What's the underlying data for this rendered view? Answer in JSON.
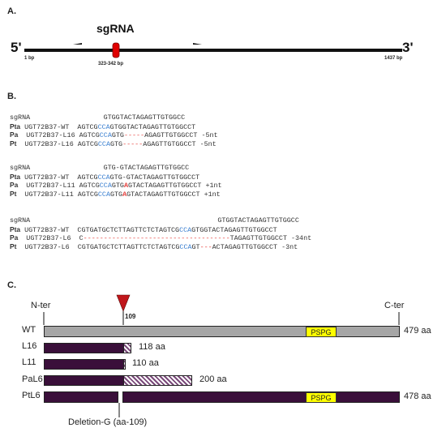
{
  "panel_a": {
    "label": "A.",
    "title": "sgRNA",
    "five_prime": "5'",
    "three_prime": "3'",
    "start_pos": "1 bp",
    "end_pos": "1437 bp",
    "target_range": "323-342 bp"
  },
  "panel_b": {
    "label": "B.",
    "blocks": [
      {
        "lines": [
          {
            "sp": "",
            "sp_style": "",
            "name": "sgRNA",
            "segments": [
              [
                "                  GTGGTACTAGAGTTGTGGCC",
                ""
              ]
            ],
            "note": ""
          },
          {
            "sp": "Pta",
            "sp_style": "b",
            "name": " UGT72B37-WT  ",
            "segments": [
              [
                "AGTCG",
                ""
              ],
              [
                "CCA",
                "blue"
              ],
              [
                "GTGGTACTAGAGTTGTGGCCT",
                ""
              ]
            ],
            "note": ""
          },
          {
            "sp": "Pa",
            "sp_style": "b",
            "name": "  UGT72B37-L16 ",
            "segments": [
              [
                "AGTCG",
                ""
              ],
              [
                "CCA",
                "blue"
              ],
              [
                "GTG",
                ""
              ],
              [
                "-----",
                "red"
              ],
              [
                "AGAGTTGTGGCCT",
                ""
              ]
            ],
            "note": " -5nt"
          },
          {
            "sp": "Pt",
            "sp_style": "b",
            "name": "  UGT72B37-L16 ",
            "segments": [
              [
                "AGTCG",
                ""
              ],
              [
                "CCA",
                "blue"
              ],
              [
                "GTG",
                ""
              ],
              [
                "-----",
                "red"
              ],
              [
                "AGAGTTGTGGCCT",
                ""
              ]
            ],
            "note": " -5nt"
          }
        ]
      },
      {
        "lines": [
          {
            "sp": "",
            "sp_style": "",
            "name": "sgRNA",
            "segments": [
              [
                "                  GTG-GTACTAGAGTTGTGGCC",
                ""
              ]
            ],
            "note": ""
          },
          {
            "sp": "Pta",
            "sp_style": "b",
            "name": " UGT72B37-WT  ",
            "segments": [
              [
                "AGTCG",
                ""
              ],
              [
                "CCA",
                "blue"
              ],
              [
                "GTG-GTACTAGAGTTGTGGCCT",
                ""
              ]
            ],
            "note": ""
          },
          {
            "sp": "Pa",
            "sp_style": "b",
            "name": "  UGT72B37-L11 ",
            "segments": [
              [
                "AGTCG",
                ""
              ],
              [
                "CCA",
                "blue"
              ],
              [
                "GTG",
                ""
              ],
              [
                "A",
                "redb"
              ],
              [
                "GTACTAGAGTTGTGGCCT",
                ""
              ]
            ],
            "note": " +1nt"
          },
          {
            "sp": "Pt",
            "sp_style": "b",
            "name": "  UGT72B37-L11 ",
            "segments": [
              [
                "AGTCG",
                ""
              ],
              [
                "CCA",
                "blue"
              ],
              [
                "GTG",
                ""
              ],
              [
                "A",
                "redb"
              ],
              [
                "GTACTAGAGTTGTGGCCT",
                ""
              ]
            ],
            "note": " +1nt"
          }
        ]
      },
      {
        "lines": [
          {
            "sp": "",
            "sp_style": "",
            "name": "sgRNA",
            "segments": [
              [
                "                                              GTGGTACTAGAGTTGTGGCC",
                ""
              ]
            ],
            "note": ""
          },
          {
            "sp": "Pta",
            "sp_style": "b",
            "name": " UGT72B37-WT  ",
            "segments": [
              [
                "CGTGATGCTCTTAGTTCTCTAGTCG",
                ""
              ],
              [
                "CCA",
                "blue"
              ],
              [
                "GTGGTACTAGAGTTGTGGCCT",
                ""
              ]
            ],
            "note": ""
          },
          {
            "sp": "Pa",
            "sp_style": "b",
            "name": "  UGT72B37-L6  ",
            "segments": [
              [
                "C",
                ""
              ],
              [
                "------------------------------------",
                "red"
              ],
              [
                "TAGAGTTGTGGCCT",
                ""
              ]
            ],
            "note": " -34nt"
          },
          {
            "sp": "Pt",
            "sp_style": "b",
            "name": "  UGT72B37-L6  ",
            "segments": [
              [
                "CGTGATGCTCTTAGTTCTCTAGTCG",
                ""
              ],
              [
                "CCA",
                "blue"
              ],
              [
                "GT",
                ""
              ],
              [
                "---",
                "red"
              ],
              [
                "ACTAGAGTTGTGGCCT",
                ""
              ]
            ],
            "note": " -3nt"
          }
        ]
      }
    ]
  },
  "panel_c": {
    "label": "C.",
    "n_ter": "N-ter",
    "c_ter": "C-ter",
    "site": "109",
    "domain": "PSPG",
    "deletion_note": "Deletion-G (aa-109)",
    "rows": [
      {
        "name": "WT",
        "length": "479 aa"
      },
      {
        "name": "L16",
        "length": "118 aa"
      },
      {
        "name": "L11",
        "length": "110 aa"
      },
      {
        "name": "PaL6",
        "length": "200 aa"
      },
      {
        "name": "PtL6",
        "length": "478 aa"
      }
    ]
  },
  "colors": {
    "pam_blue": "#3a7fd0",
    "mutation_red": "#e53935",
    "sgRNA_marker": "#e00000",
    "wt_bar": "#a6a6a6",
    "mutant_bar": "#3a0f3a",
    "pspg_box": "#ffff00"
  }
}
